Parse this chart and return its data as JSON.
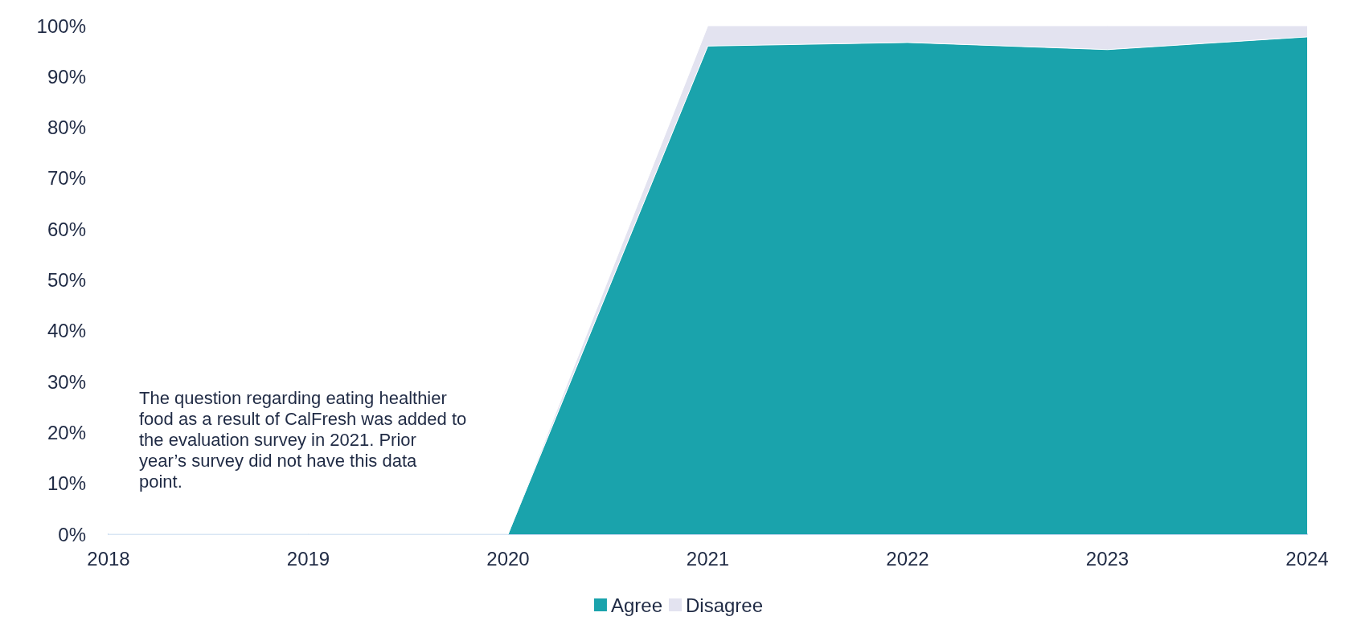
{
  "chart_data": {
    "type": "area",
    "stacked": true,
    "categories": [
      "2018",
      "2019",
      "2020",
      "2021",
      "2022",
      "2023",
      "2024"
    ],
    "series": [
      {
        "name": "Agree",
        "color": "#1aa3ac",
        "values": [
          0,
          0,
          0,
          96,
          96.7,
          95.3,
          97.8
        ]
      },
      {
        "name": "Disagree",
        "color": "#e3e3f0",
        "values": [
          0,
          0,
          0,
          4,
          3.3,
          4.7,
          2.2
        ]
      }
    ],
    "ylim": [
      0,
      100
    ],
    "yticks": [
      {
        "value": 0,
        "label": "0%"
      },
      {
        "value": 10,
        "label": "10%"
      },
      {
        "value": 20,
        "label": "20%"
      },
      {
        "value": 30,
        "label": "30%"
      },
      {
        "value": 40,
        "label": "40%"
      },
      {
        "value": 50,
        "label": "50%"
      },
      {
        "value": 60,
        "label": "60%"
      },
      {
        "value": 70,
        "label": "70%"
      },
      {
        "value": 80,
        "label": "80%"
      },
      {
        "value": 90,
        "label": "90%"
      },
      {
        "value": 100,
        "label": "100%"
      }
    ],
    "grid": false,
    "legend": "bottom",
    "annotations": [
      "The question regarding eating healthier food as a result of CalFresh was added to the evaluation survey in 2021. Prior year’s survey did not have this data point."
    ]
  }
}
